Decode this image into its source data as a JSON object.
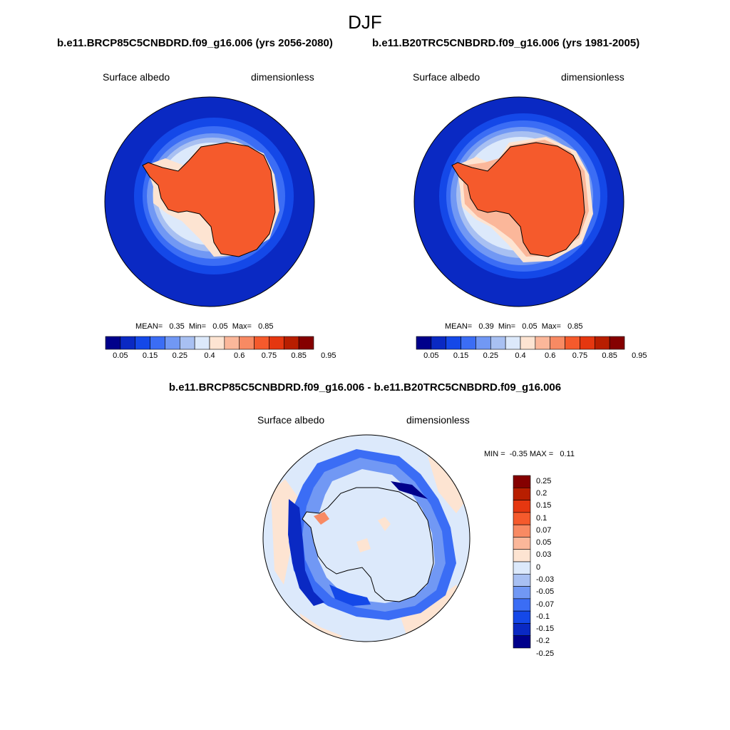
{
  "title": "DJF",
  "left_panel": {
    "case": "b.e11.BRCP85C5CNBDRD.f09_g16.006 (yrs 2056-2080)",
    "variable": "Surface albedo",
    "units": "dimensionless",
    "stats": "MEAN=   0.35  Min=   0.05  Max=   0.85"
  },
  "right_panel": {
    "case": "b.e11.B20TRC5CNBDRD.f09_g16.006 (yrs 1981-2005)",
    "variable": "Surface albedo",
    "units": "dimensionless",
    "stats": "MEAN=   0.39  Min=   0.05  Max=   0.85"
  },
  "diff_panel": {
    "case": "b.e11.BRCP85C5CNBDRD.f09_g16.006 - b.e11.B20TRC5CNBDRD.f09_g16.006",
    "variable": "Surface albedo",
    "units": "dimensionless",
    "stats": "MIN =  -0.35 MAX =   0.11"
  },
  "albedo_colorbar": {
    "labels": [
      "0.05",
      "0.15",
      "0.25",
      "0.4",
      "0.6",
      "0.75",
      "0.85",
      "0.95"
    ],
    "colors": [
      "#00008b",
      "#0a29c3",
      "#1448e8",
      "#3b6df5",
      "#7198f4",
      "#a8c0f2",
      "#dce9fb",
      "#fde4d2",
      "#fbb79a",
      "#f88a63",
      "#f55a2c",
      "#e53710",
      "#b81e00",
      "#850000"
    ]
  },
  "diff_colorbar": {
    "labels": [
      "0.25",
      "0.2",
      "0.15",
      "0.1",
      "0.07",
      "0.05",
      "0.03",
      "0",
      "-0.03",
      "-0.05",
      "-0.07",
      "-0.1",
      "-0.15",
      "-0.2",
      "-0.25"
    ],
    "colors": [
      "#850000",
      "#b81e00",
      "#e53710",
      "#f55a2c",
      "#f88a63",
      "#fbb79a",
      "#fde4d2",
      "#dce9fb",
      "#a8c0f2",
      "#7198f4",
      "#3b6df5",
      "#1448e8",
      "#0a29c3",
      "#00008b"
    ]
  }
}
